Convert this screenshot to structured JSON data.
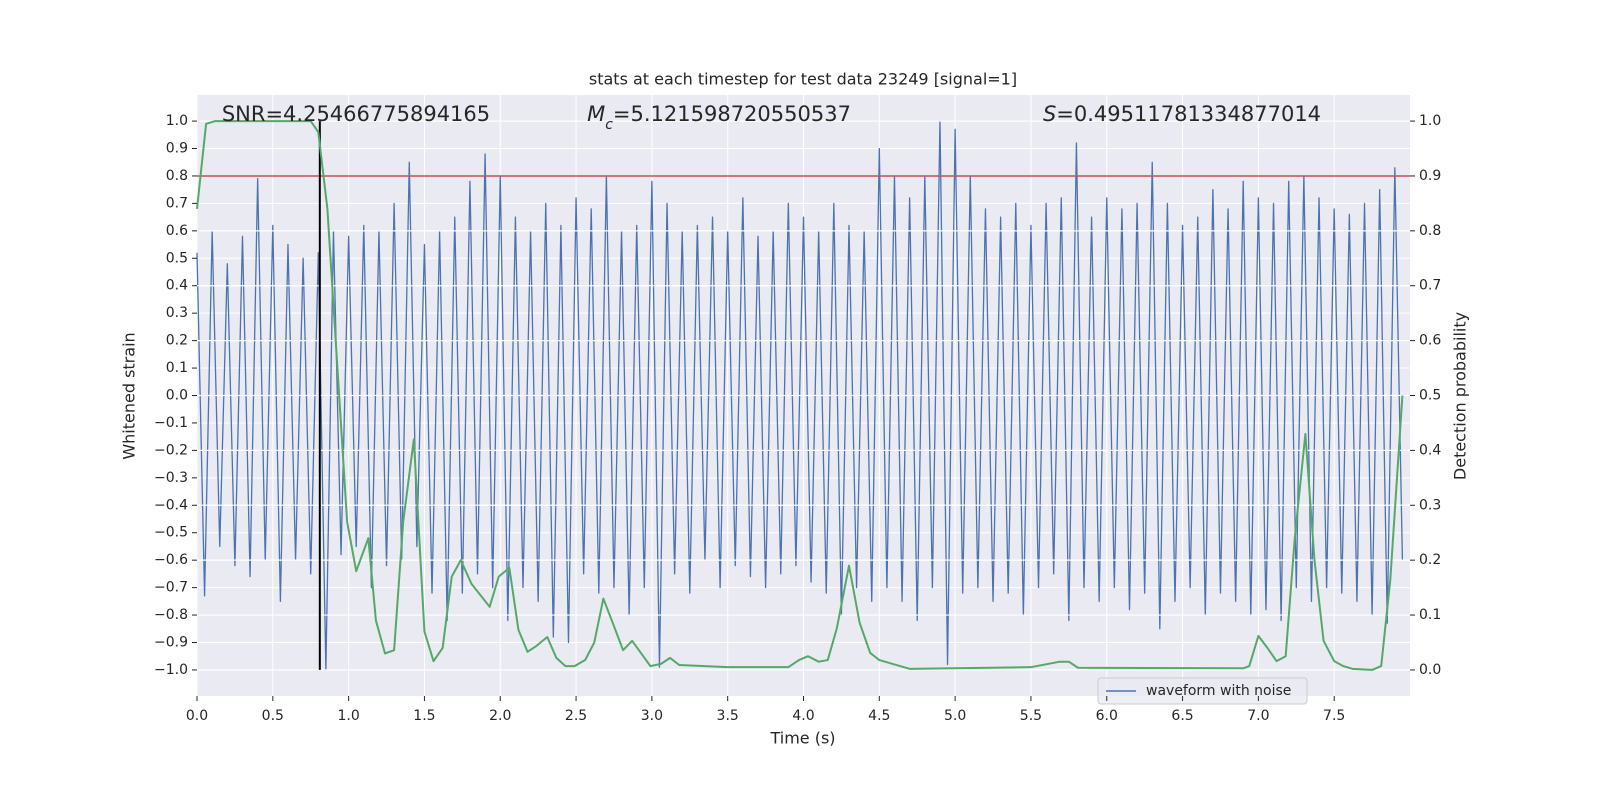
{
  "chart_data": {
    "type": "line",
    "title": "stats at each timestep for test data 23249 [signal=1]",
    "xlabel": "Time (s)",
    "ylabel": "Whitened strain",
    "y2label": "Detection probability",
    "annotations": [
      {
        "text": "SNR=4.25466775894165"
      },
      {
        "symbol": "M",
        "subscript": "c",
        "text": "=5.121598720550537"
      },
      {
        "symbol": "S",
        "text": "=0.49511781334877014"
      }
    ],
    "xlim": [
      0,
      8
    ],
    "ylim": [
      -1.095,
      1.095
    ],
    "y2lim": [
      -0.0475,
      1.0475
    ],
    "xticks": [
      {
        "value": 0,
        "label": "0.0"
      },
      0.5,
      {
        "value": 1,
        "label": "1.0"
      },
      1.5,
      {
        "value": 2,
        "label": "2.0"
      },
      2.5,
      {
        "value": 3,
        "label": "3.0"
      },
      3.5,
      {
        "value": 4,
        "label": "4.0"
      },
      4.5,
      {
        "value": 5,
        "label": "5.0"
      },
      5.5,
      {
        "value": 6,
        "label": "6.0"
      },
      6.5,
      {
        "value": 7,
        "label": "7.0"
      },
      7.5
    ],
    "yticks": [
      {
        "value": -1,
        "label": "−1.0"
      },
      {
        "value": -0.9,
        "label": "−0.9"
      },
      {
        "value": -0.8,
        "label": "−0.8"
      },
      {
        "value": -0.7,
        "label": "−0.7"
      },
      {
        "value": -0.6,
        "label": "−0.6"
      },
      {
        "value": -0.5,
        "label": "−0.5"
      },
      {
        "value": -0.4,
        "label": "−0.4"
      },
      {
        "value": -0.3,
        "label": "−0.3"
      },
      {
        "value": -0.2,
        "label": "−0.2"
      },
      {
        "value": -0.1,
        "label": "−0.1"
      },
      {
        "value": 0,
        "label": "0.0"
      },
      0.1,
      0.2,
      0.3,
      0.4,
      0.5,
      0.6,
      0.7,
      0.8,
      0.9,
      {
        "value": 1,
        "label": "1.0"
      }
    ],
    "y2ticks": [
      {
        "value": 0,
        "label": "0.0"
      },
      0.1,
      0.2,
      0.3,
      0.4,
      0.5,
      0.6,
      0.7,
      0.8,
      0.9,
      {
        "value": 1,
        "label": "1.0"
      }
    ],
    "grid": true,
    "y2grid": true,
    "legend": "lower right",
    "series": [
      {
        "name": "waveform with noise",
        "color": "#4c72b0",
        "x": [
          0,
          0.05,
          0.1,
          0.15,
          0.2,
          0.25,
          0.3,
          0.35,
          0.4,
          0.45,
          0.5,
          0.55,
          0.6,
          0.65,
          0.7,
          0.75,
          0.8,
          0.85,
          0.9,
          0.95,
          1,
          1.05,
          1.1,
          1.15,
          1.2,
          1.25,
          1.3,
          1.35,
          1.4,
          1.45,
          1.5,
          1.55,
          1.6,
          1.65,
          1.7,
          1.75,
          1.8,
          1.85,
          1.9,
          1.95,
          2,
          2.05,
          2.1,
          2.15,
          2.2,
          2.25,
          2.3,
          2.35,
          2.4,
          2.45,
          2.5,
          2.55,
          2.6,
          2.65,
          2.7,
          2.75,
          2.8,
          2.85,
          2.9,
          2.95,
          3,
          3.05,
          3.1,
          3.15,
          3.2,
          3.25,
          3.3,
          3.35,
          3.4,
          3.45,
          3.5,
          3.55,
          3.6,
          3.65,
          3.7,
          3.75,
          3.8,
          3.85,
          3.9,
          3.95,
          4,
          4.05,
          4.1,
          4.15,
          4.2,
          4.25,
          4.3,
          4.35,
          4.4,
          4.45,
          4.5,
          4.55,
          4.6,
          4.65,
          4.7,
          4.75,
          4.8,
          4.85,
          4.9,
          4.95,
          5,
          5.05,
          5.1,
          5.15,
          5.2,
          5.25,
          5.3,
          5.35,
          5.4,
          5.45,
          5.5,
          5.55,
          5.6,
          5.65,
          5.7,
          5.75,
          5.8,
          5.85,
          5.9,
          5.95,
          6,
          6.05,
          6.1,
          6.15,
          6.2,
          6.25,
          6.3,
          6.35,
          6.4,
          6.45,
          6.5,
          6.55,
          6.6,
          6.65,
          6.7,
          6.75,
          6.8,
          6.85,
          6.9,
          6.95,
          7,
          7.05,
          7.1,
          7.15,
          7.2,
          7.25,
          7.3,
          7.35,
          7.4,
          7.45,
          7.5,
          7.55,
          7.6,
          7.65,
          7.7,
          7.75,
          7.8,
          7.85,
          7.9,
          7.95
        ],
        "values": [
          0.52,
          -0.73,
          0.6,
          -0.55,
          0.48,
          -0.62,
          0.58,
          -0.66,
          0.79,
          -0.6,
          0.62,
          -0.75,
          0.55,
          -0.6,
          0.5,
          -0.65,
          0.52,
          -1.0,
          0.6,
          -0.58,
          0.58,
          -0.55,
          0.62,
          -0.7,
          0.6,
          -0.62,
          0.7,
          -0.6,
          0.85,
          -0.55,
          0.55,
          -0.72,
          0.6,
          -0.82,
          0.65,
          -0.72,
          0.78,
          -0.65,
          0.88,
          -0.7,
          0.8,
          -0.82,
          0.65,
          -0.7,
          0.6,
          -0.75,
          0.7,
          -0.88,
          0.62,
          -0.9,
          0.72,
          -0.65,
          0.68,
          -0.72,
          0.8,
          -0.7,
          0.6,
          -0.8,
          0.62,
          -0.7,
          0.78,
          -0.99,
          0.7,
          -0.65,
          0.6,
          -0.72,
          0.62,
          -0.6,
          0.65,
          -0.7,
          0.6,
          -0.62,
          0.72,
          -0.66,
          0.58,
          -0.7,
          0.6,
          -0.65,
          0.7,
          -0.62,
          0.65,
          -0.68,
          0.6,
          -0.72,
          0.7,
          -0.8,
          0.62,
          -0.7,
          0.6,
          -0.75,
          0.9,
          -0.7,
          0.8,
          -0.75,
          0.72,
          -0.82,
          0.8,
          -0.7,
          1.0,
          -0.98,
          0.97,
          -0.72,
          0.8,
          -0.7,
          0.68,
          -0.75,
          0.65,
          -0.72,
          0.7,
          -0.8,
          0.62,
          -0.7,
          0.7,
          -0.65,
          0.72,
          -0.82,
          0.92,
          -0.7,
          0.65,
          -0.75,
          0.72,
          -0.7,
          0.68,
          -0.78,
          0.7,
          -0.72,
          0.85,
          -0.85,
          0.7,
          -0.75,
          0.62,
          -0.7,
          0.65,
          -0.8,
          0.75,
          -0.72,
          0.68,
          -0.75,
          0.78,
          -0.8,
          0.72,
          -0.78,
          0.7,
          -0.82,
          0.78,
          -0.7,
          0.8,
          -0.75,
          0.72,
          -0.7,
          0.68,
          -0.72,
          0.66,
          -0.75,
          0.7,
          -0.8,
          0.75,
          -0.83,
          0.83,
          -0.6
        ]
      },
      {
        "color": "#55a868",
        "axis": "y2",
        "x": [
          0,
          0.06,
          0.12,
          0.75,
          0.8,
          0.86,
          0.99,
          1.05,
          1.13,
          1.18,
          1.24,
          1.3,
          1.36,
          1.43,
          1.5,
          1.56,
          1.62,
          1.68,
          1.74,
          1.81,
          1.93,
          1.99,
          2.06,
          2.12,
          2.18,
          2.24,
          2.31,
          2.37,
          2.43,
          2.49,
          2.56,
          2.62,
          2.68,
          2.74,
          2.81,
          2.87,
          2.93,
          2.99,
          3.06,
          3.12,
          3.18,
          3.5,
          3.9,
          3.97,
          4.03,
          4.1,
          4.16,
          4.22,
          4.3,
          4.37,
          4.44,
          4.5,
          4.7,
          5.5,
          5.69,
          5.75,
          5.81,
          6.9,
          6.94,
          7.0,
          7.06,
          7.12,
          7.18,
          7.24,
          7.31,
          7.37,
          7.43,
          7.5,
          7.56,
          7.62,
          7.75,
          7.81,
          7.87,
          7.95
        ],
        "values": [
          0.84,
          0.995,
          1.0,
          1.0,
          0.98,
          0.84,
          0.27,
          0.18,
          0.24,
          0.09,
          0.03,
          0.036,
          0.27,
          0.42,
          0.07,
          0.016,
          0.04,
          0.17,
          0.2,
          0.157,
          0.115,
          0.17,
          0.186,
          0.073,
          0.033,
          0.044,
          0.06,
          0.022,
          0.007,
          0.007,
          0.018,
          0.05,
          0.13,
          0.087,
          0.036,
          0.053,
          0.03,
          0.007,
          0.011,
          0.022,
          0.009,
          0.005,
          0.005,
          0.018,
          0.025,
          0.015,
          0.018,
          0.076,
          0.19,
          0.086,
          0.031,
          0.018,
          0.002,
          0.005,
          0.015,
          0.015,
          0.004,
          0.003,
          0.007,
          0.062,
          0.04,
          0.016,
          0.025,
          0.24,
          0.43,
          0.2,
          0.053,
          0.016,
          0.007,
          0.002,
          0.0,
          0.007,
          0.164,
          0.5
        ]
      }
    ],
    "hlines": [
      {
        "y": 0.8,
        "color": "#c44e52"
      }
    ],
    "vlines": [
      {
        "x": 0.81,
        "ymin": -1.0,
        "ymax": 1.0,
        "color": "#000000"
      }
    ]
  }
}
